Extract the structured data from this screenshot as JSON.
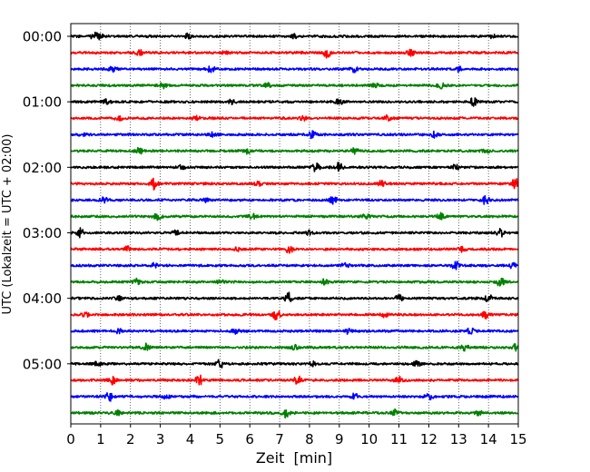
{
  "chart_data": {
    "type": "line",
    "title": "",
    "xlabel": "Zeit  [min]",
    "ylabel": "UTC (Lokalzeit = UTC + 02:00)",
    "xlim": [
      0,
      15
    ],
    "x_ticks": [
      "0",
      "1",
      "2",
      "3",
      "4",
      "5",
      "6",
      "7",
      "8",
      "9",
      "10",
      "11",
      "12",
      "13",
      "14",
      "15"
    ],
    "y_ticks": [
      "00:00",
      "01:00",
      "02:00",
      "03:00",
      "04:00",
      "05:00"
    ],
    "grid": "vertical dotted lines at each minute",
    "trace_interval_minutes": 15,
    "trace_count": 24,
    "trace_colors": [
      "#000000",
      "#ff0000",
      "#0000ff",
      "#008000"
    ],
    "series": [
      {
        "start": "00:00",
        "color": "#000000",
        "events": [
          [
            0.8,
            1.6
          ],
          [
            1.0,
            1.0
          ],
          [
            3.9,
            1.3
          ],
          [
            7.5,
            0.9
          ],
          [
            14.1,
            1.1
          ]
        ]
      },
      {
        "start": "00:15",
        "color": "#ff0000",
        "events": [
          [
            2.3,
            1.5
          ],
          [
            5.2,
            0.9
          ],
          [
            8.6,
            2.6
          ],
          [
            11.4,
            1.6
          ]
        ]
      },
      {
        "start": "00:30",
        "color": "#0000ff",
        "events": [
          [
            1.4,
            1.1
          ],
          [
            4.7,
            1.6
          ],
          [
            9.5,
            1.4
          ],
          [
            13.0,
            1.0
          ]
        ]
      },
      {
        "start": "00:45",
        "color": "#008000",
        "events": [
          [
            3.1,
            1.3
          ],
          [
            6.6,
            1.2
          ],
          [
            10.2,
            1.0
          ],
          [
            12.4,
            1.3
          ]
        ]
      },
      {
        "start": "01:00",
        "color": "#000000",
        "events": [
          [
            1.2,
            1.0
          ],
          [
            5.4,
            1.0
          ],
          [
            9.0,
            1.1
          ],
          [
            13.5,
            2.6
          ]
        ]
      },
      {
        "start": "01:15",
        "color": "#ff0000",
        "events": [
          [
            1.6,
            1.3
          ],
          [
            4.2,
            1.2
          ],
          [
            7.8,
            1.0
          ],
          [
            10.6,
            1.0
          ]
        ]
      },
      {
        "start": "01:30",
        "color": "#0000ff",
        "events": [
          [
            0.4,
            1.0
          ],
          [
            4.8,
            1.2
          ],
          [
            8.1,
            1.6
          ],
          [
            12.2,
            1.4
          ]
        ]
      },
      {
        "start": "01:45",
        "color": "#008000",
        "events": [
          [
            2.3,
            1.6
          ],
          [
            5.9,
            1.2
          ],
          [
            9.5,
            1.4
          ],
          [
            13.9,
            1.0
          ]
        ]
      },
      {
        "start": "02:00",
        "color": "#000000",
        "events": [
          [
            3.7,
            1.0
          ],
          [
            8.2,
            2.0
          ],
          [
            9.0,
            2.2
          ],
          [
            12.9,
            1.3
          ]
        ]
      },
      {
        "start": "02:15",
        "color": "#ff0000",
        "events": [
          [
            2.8,
            2.6
          ],
          [
            6.3,
            1.0
          ],
          [
            10.4,
            1.2
          ],
          [
            14.9,
            2.3
          ]
        ]
      },
      {
        "start": "02:30",
        "color": "#0000ff",
        "events": [
          [
            1.1,
            1.3
          ],
          [
            4.5,
            1.0
          ],
          [
            8.8,
            1.6
          ],
          [
            13.9,
            2.0
          ]
        ]
      },
      {
        "start": "02:45",
        "color": "#008000",
        "events": [
          [
            2.9,
            1.6
          ],
          [
            6.1,
            1.0
          ],
          [
            9.9,
            1.8
          ],
          [
            12.4,
            1.4
          ]
        ]
      },
      {
        "start": "03:00",
        "color": "#000000",
        "events": [
          [
            0.3,
            2.2
          ],
          [
            3.5,
            1.0
          ],
          [
            8.0,
            1.3
          ],
          [
            14.4,
            2.0
          ]
        ]
      },
      {
        "start": "03:15",
        "color": "#ff0000",
        "events": [
          [
            1.9,
            1.2
          ],
          [
            5.6,
            1.0
          ],
          [
            7.3,
            2.4
          ],
          [
            13.1,
            1.2
          ]
        ]
      },
      {
        "start": "03:30",
        "color": "#0000ff",
        "events": [
          [
            2.8,
            1.1
          ],
          [
            9.2,
            1.6
          ],
          [
            12.9,
            1.8
          ],
          [
            14.8,
            1.2
          ]
        ]
      },
      {
        "start": "03:45",
        "color": "#008000",
        "events": [
          [
            2.2,
            1.3
          ],
          [
            5.0,
            1.2
          ],
          [
            8.5,
            1.3
          ],
          [
            14.4,
            2.0
          ]
        ]
      },
      {
        "start": "04:00",
        "color": "#000000",
        "events": [
          [
            1.6,
            1.0
          ],
          [
            7.3,
            2.4
          ],
          [
            11.0,
            1.4
          ],
          [
            14.0,
            2.0
          ]
        ]
      },
      {
        "start": "04:15",
        "color": "#ff0000",
        "events": [
          [
            0.5,
            1.0
          ],
          [
            6.9,
            2.4
          ],
          [
            10.5,
            1.0
          ],
          [
            13.9,
            1.6
          ]
        ]
      },
      {
        "start": "04:30",
        "color": "#0000ff",
        "events": [
          [
            1.6,
            1.0
          ],
          [
            5.5,
            1.3
          ],
          [
            9.3,
            1.2
          ],
          [
            13.4,
            1.3
          ]
        ]
      },
      {
        "start": "04:45",
        "color": "#008000",
        "events": [
          [
            2.5,
            1.6
          ],
          [
            7.5,
            1.0
          ],
          [
            13.2,
            1.9
          ],
          [
            14.9,
            1.4
          ]
        ]
      },
      {
        "start": "05:00",
        "color": "#000000",
        "events": [
          [
            0.9,
            1.0
          ],
          [
            5.0,
            2.2
          ],
          [
            8.1,
            1.1
          ],
          [
            11.6,
            1.1
          ]
        ]
      },
      {
        "start": "05:15",
        "color": "#ff0000",
        "events": [
          [
            1.4,
            1.8
          ],
          [
            4.3,
            2.6
          ],
          [
            7.6,
            2.2
          ],
          [
            11.0,
            1.5
          ]
        ]
      },
      {
        "start": "05:30",
        "color": "#0000ff",
        "events": [
          [
            1.3,
            2.0
          ],
          [
            3.2,
            1.3
          ],
          [
            9.5,
            1.3
          ],
          [
            12.0,
            1.6
          ]
        ]
      },
      {
        "start": "05:45",
        "color": "#008000",
        "events": [
          [
            1.6,
            1.0
          ],
          [
            7.2,
            2.0
          ],
          [
            10.9,
            1.6
          ],
          [
            13.7,
            1.2
          ]
        ]
      }
    ]
  }
}
